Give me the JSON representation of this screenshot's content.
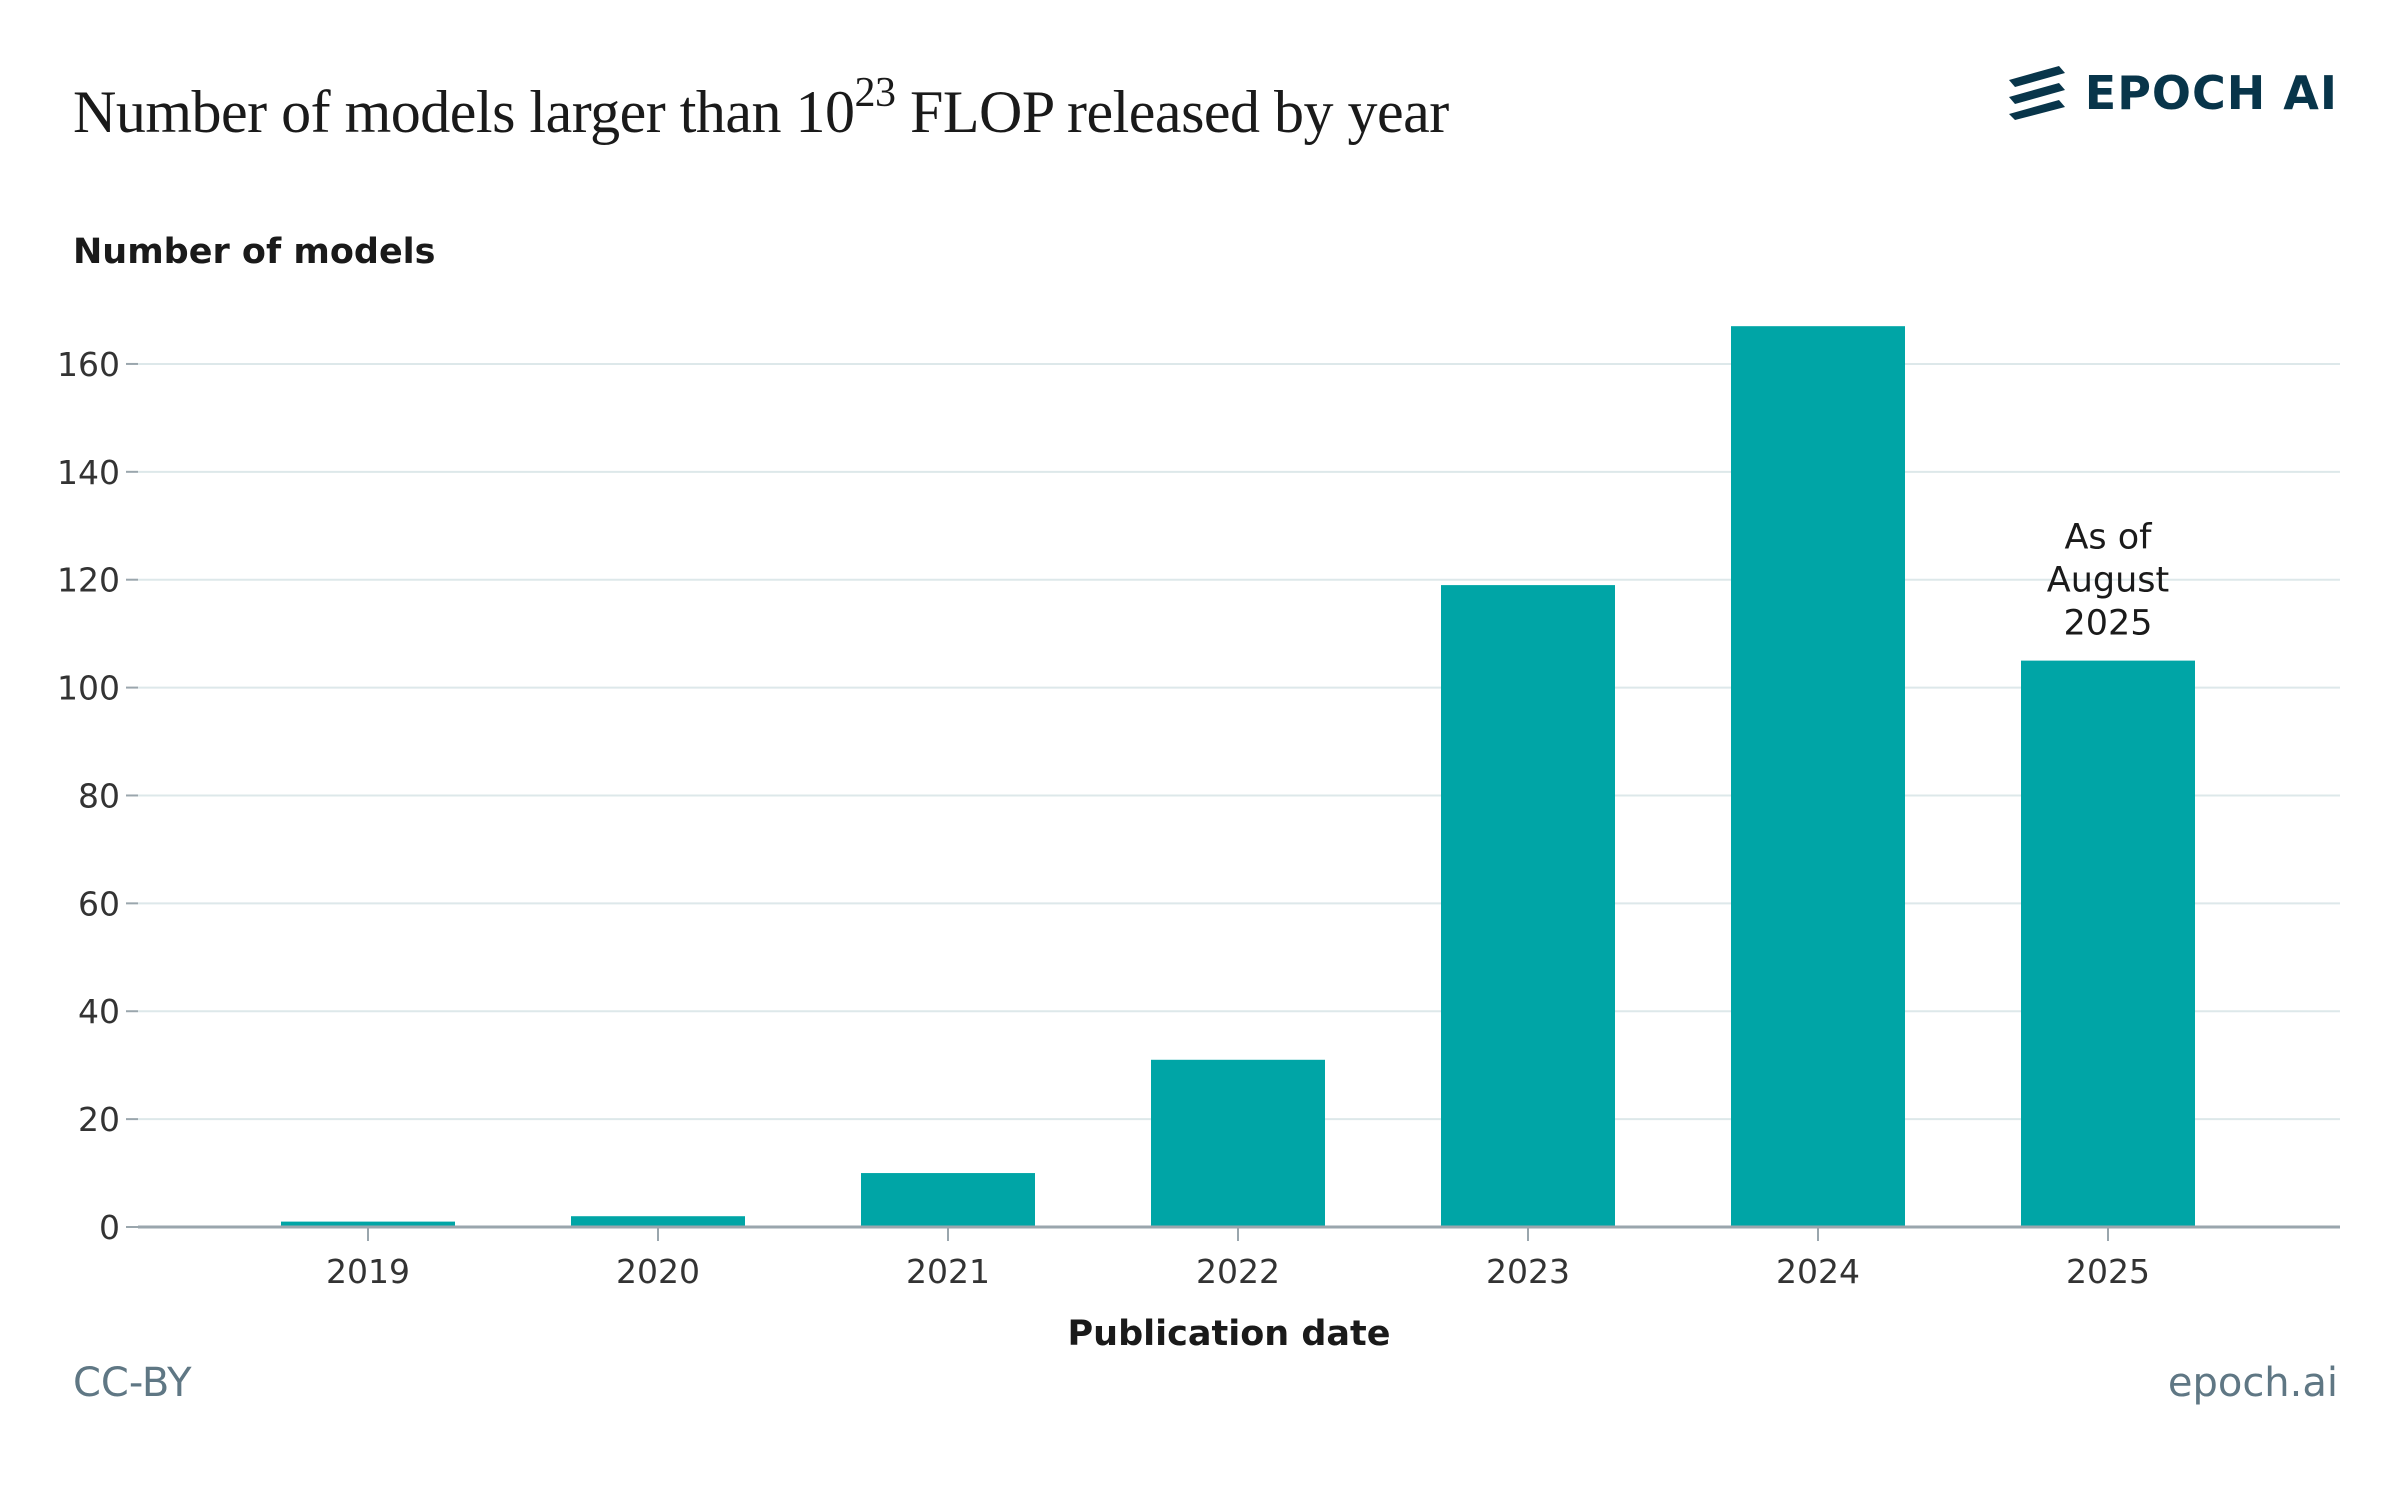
{
  "title": {
    "text": "Number of models larger than 10",
    "superscript": "23",
    "suffix": " FLOP released by year"
  },
  "brand": {
    "name": "EPOCH AI",
    "icon": "epoch-stripes-icon"
  },
  "footer": {
    "license": "CC-BY",
    "site": "epoch.ai"
  },
  "colors": {
    "bar": "#00a5a6",
    "grid": "#dde8ea",
    "axis": "#9aa6ad",
    "text": "#333333",
    "brand": "#08354a"
  },
  "chart_data": {
    "type": "bar",
    "categories": [
      "2019",
      "2020",
      "2021",
      "2022",
      "2023",
      "2024",
      "2025"
    ],
    "values": [
      1,
      2,
      10,
      31,
      119,
      167,
      105
    ],
    "xlabel": "Publication date",
    "ylabel": "Number of models",
    "ylim": [
      0,
      170
    ],
    "yticks": [
      0,
      20,
      40,
      60,
      80,
      100,
      120,
      140,
      160
    ],
    "grid": true,
    "annotations": [
      {
        "category": "2025",
        "lines": [
          "As of",
          "August",
          "2025"
        ]
      }
    ]
  }
}
